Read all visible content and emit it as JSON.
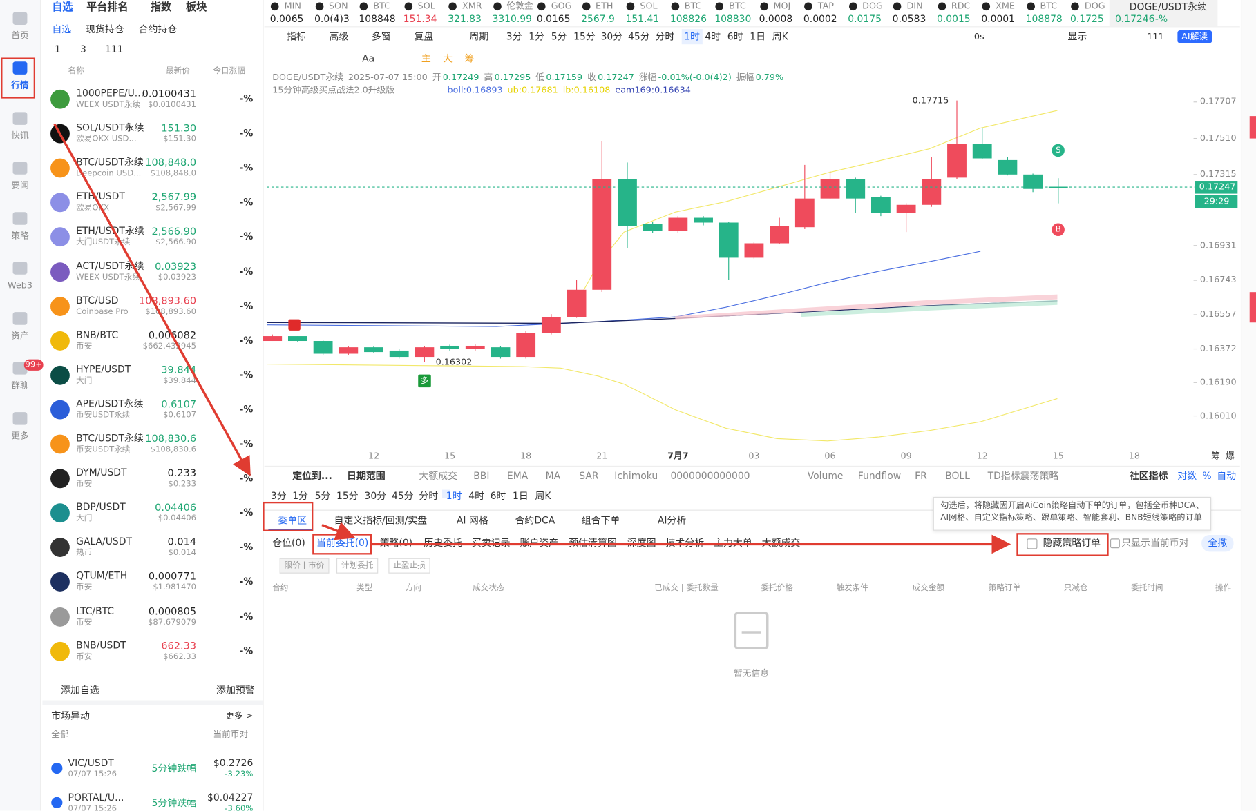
{
  "nav": {
    "items": [
      "首页",
      "行情",
      "快讯",
      "要闻",
      "策略",
      "Web3",
      "资产",
      "群聊",
      "更多"
    ],
    "badge": "99+"
  },
  "market": {
    "tabs": [
      "自选",
      "平台排名",
      "指数",
      "板块"
    ],
    "subtabs": [
      "自选",
      "现货持仓",
      "合约持仓"
    ],
    "groups": [
      "1",
      "3",
      "111"
    ],
    "columns": [
      "名称",
      "最新价",
      "今日涨幅"
    ],
    "rows": [
      {
        "symbol": "1000PEPE/U...",
        "exchange": "WEEX USDT永续",
        "price": "0.0100431",
        "usd": "$0.0100431",
        "change": "-%",
        "color": "#222"
      },
      {
        "symbol": "SOL/USDT永续",
        "exchange": "欧易OKX USD...",
        "price": "151.30",
        "usd": "$151.30",
        "change": "-%",
        "color": "#1ea672"
      },
      {
        "symbol": "BTC/USDT永续",
        "exchange": "Deepcoin USD...",
        "price": "108,848.0",
        "usd": "$108,848.0",
        "change": "-%",
        "color": "#1ea672"
      },
      {
        "symbol": "ETH/USDT",
        "exchange": "欧易OKX",
        "price": "2,567.99",
        "usd": "$2,567.99",
        "change": "-%",
        "color": "#1ea672"
      },
      {
        "symbol": "ETH/USDT永续",
        "exchange": "大门USDT永续",
        "price": "2,566.90",
        "usd": "$2,566.90",
        "change": "-%",
        "color": "#1ea672"
      },
      {
        "symbol": "ACT/USDT永续",
        "exchange": "WEEX USDT永续",
        "price": "0.03923",
        "usd": "$0.03923",
        "change": "-%",
        "color": "#1ea672"
      },
      {
        "symbol": "BTC/USD",
        "exchange": "Coinbase Pro",
        "price": "108,893.60",
        "usd": "$108,893.60",
        "change": "-%",
        "color": "#e8404f"
      },
      {
        "symbol": "BNB/BTC",
        "exchange": "币安",
        "price": "0.006082",
        "usd": "$662.432945",
        "change": "-%",
        "color": "#222"
      },
      {
        "symbol": "HYPE/USDT",
        "exchange": "大门",
        "price": "39.844",
        "usd": "$39.844",
        "change": "-%",
        "color": "#1ea672"
      },
      {
        "symbol": "APE/USDT永续",
        "exchange": "币安USDT永续",
        "price": "0.6107",
        "usd": "$0.6107",
        "change": "-%",
        "color": "#1ea672"
      },
      {
        "symbol": "BTC/USDT永续",
        "exchange": "币安USDT永续",
        "price": "108,830.6",
        "usd": "$108,830.6",
        "change": "-%",
        "color": "#1ea672"
      },
      {
        "symbol": "DYM/USDT",
        "exchange": "币安",
        "price": "0.233",
        "usd": "$0.233",
        "change": "-%",
        "color": "#222"
      },
      {
        "symbol": "BDP/USDT",
        "exchange": "大门",
        "price": "0.04406",
        "usd": "$0.04406",
        "change": "-%",
        "color": "#1ea672"
      },
      {
        "symbol": "GALA/USDT",
        "exchange": "热币",
        "price": "0.014",
        "usd": "$0.014",
        "change": "-%",
        "color": "#222"
      },
      {
        "symbol": "QTUM/ETH",
        "exchange": "币安",
        "price": "0.000771",
        "usd": "$1.981470",
        "change": "-%",
        "color": "#222"
      },
      {
        "symbol": "LTC/BTC",
        "exchange": "币安",
        "price": "0.000805",
        "usd": "$87.679079",
        "change": "-%",
        "color": "#222"
      },
      {
        "symbol": "BNB/USDT",
        "exchange": "币安",
        "price": "662.33",
        "usd": "$662.33",
        "change": "-%",
        "color": "#e8404f"
      }
    ],
    "add": "添加自选",
    "alert": "添加预警"
  },
  "movement": {
    "title": "市场异动",
    "more": "更多 >",
    "filter": "全部",
    "current": "当前币对",
    "items": [
      {
        "pair": "VIC/USDT",
        "time": "07/07 15:26",
        "type": "5分钟跌幅",
        "price": "$0.2726",
        "change": "-3.23%"
      },
      {
        "pair": "PORTAL/U...",
        "time": "07/07 15:26",
        "type": "5分钟跌幅",
        "price": "$0.04227",
        "change": "-3.60%"
      }
    ]
  },
  "tickers": [
    {
      "name": "MIN",
      "price": "0.0065",
      "color": "#222"
    },
    {
      "name": "SON",
      "price": "0.0(4)3",
      "color": "#222"
    },
    {
      "name": "BTC",
      "price": "108848",
      "color": "#222"
    },
    {
      "name": "SOL",
      "price": "151.34",
      "color": "#e8404f"
    },
    {
      "name": "XMR",
      "price": "321.83",
      "color": "#1ea672"
    },
    {
      "name": "伦敦金",
      "price": "3310.99",
      "color": "#1ea672"
    },
    {
      "name": "GOG",
      "price": "0.0165",
      "color": "#222"
    },
    {
      "name": "ETH",
      "price": "2567.9",
      "color": "#1ea672"
    },
    {
      "name": "SOL",
      "price": "151.41",
      "color": "#1ea672"
    },
    {
      "name": "BTC",
      "price": "108826",
      "color": "#1ea672"
    },
    {
      "name": "BTC",
      "price": "108830",
      "color": "#1ea672"
    },
    {
      "name": "MOJ",
      "price": "0.0008",
      "color": "#222"
    },
    {
      "name": "TAP",
      "price": "0.0002",
      "color": "#222"
    },
    {
      "name": "DOG",
      "price": "0.0175",
      "color": "#1ea672"
    },
    {
      "name": "DIN",
      "price": "0.0583",
      "color": "#222"
    },
    {
      "name": "RDC",
      "price": "0.0015",
      "color": "#1ea672"
    },
    {
      "name": "XME",
      "price": "0.0001",
      "color": "#222"
    },
    {
      "name": "BTC",
      "price": "108878",
      "color": "#1ea672"
    },
    {
      "name": "DOG",
      "price": "0.1725",
      "color": "#1ea672"
    }
  ],
  "active_ticker": {
    "name": "DOGE/USDT永续",
    "price": "0.17246",
    "change": "-%"
  },
  "toolbar": {
    "tools": [
      "指标",
      "高级",
      "多窗",
      "复盘"
    ],
    "period_label": "周期",
    "periods": [
      "3分",
      "1分",
      "5分",
      "15分",
      "30分",
      "45分",
      "分时",
      "1时",
      "4时",
      "6时",
      "1日",
      "周K"
    ],
    "active_period": 7,
    "timer": "0s",
    "display": "显示",
    "cloud": "111",
    "ai": "AI解读"
  },
  "drawing": [
    "Aa",
    "主",
    "大",
    "筹"
  ],
  "chart_data": {
    "type": "candlestick",
    "title": "DOGE/USDT永续",
    "time": "2025-07-07 15:00",
    "fields": [
      {
        "k": "开",
        "v": "0.17249"
      },
      {
        "k": "高",
        "v": "0.17295"
      },
      {
        "k": "低",
        "v": "0.17159"
      },
      {
        "k": "收",
        "v": "0.17247"
      },
      {
        "k": "涨幅",
        "v": "-0.01%(-0.0(4)2)"
      },
      {
        "k": "振幅",
        "v": "0.79%"
      }
    ],
    "strategy": "15分钟高级买点战法2.0升级版",
    "indicators": [
      {
        "text": "boll:0.16893",
        "color": "#4a6ee0"
      },
      {
        "text": "ub:0.17681",
        "color": "#e6d200"
      },
      {
        "text": "lb:0.16108",
        "color": "#e6d200"
      },
      {
        "text": "eam169:0.16634",
        "color": "#3040b0"
      }
    ],
    "categories": [
      null,
      null,
      null,
      null,
      "12",
      null,
      null,
      "15",
      null,
      null,
      "18",
      null,
      null,
      "21",
      null,
      null,
      "7月7",
      null,
      null,
      "03",
      null,
      null,
      "06",
      null,
      null,
      "09",
      null,
      null,
      "12",
      null,
      null,
      "15",
      null,
      null,
      "18"
    ],
    "open": [
      0.16415,
      0.16441,
      0.16415,
      0.16346,
      0.16381,
      0.16363,
      0.16329,
      0.16389,
      0.16372,
      0.16381,
      0.16329,
      0.16459,
      0.16545,
      0.16692,
      0.17289,
      0.17047,
      0.17012,
      0.17081,
      0.17055,
      0.16865,
      0.16943,
      0.1703,
      0.17185,
      0.17289,
      0.17194,
      0.17107,
      0.17151,
      0.17298,
      0.17479,
      0.17393,
      0.17315,
      0.17249,
      null,
      null,
      null
    ],
    "high": [
      0.1645,
      0.16441,
      0.1642,
      0.16389,
      0.16389,
      0.16372,
      0.16389,
      0.16395,
      0.164,
      0.16389,
      0.1647,
      0.1656,
      0.16744,
      0.17497,
      0.1738,
      0.1706,
      0.1709,
      0.1709,
      0.1706,
      0.1695,
      0.17081,
      0.17367,
      0.17332,
      0.17298,
      0.172,
      0.1716,
      0.1741,
      0.17715,
      0.17566,
      0.1741,
      0.1732,
      0.17295,
      null,
      null,
      null
    ],
    "low": [
      0.16415,
      0.1641,
      0.1634,
      0.1634,
      0.1635,
      0.1632,
      0.16302,
      0.16363,
      0.1636,
      0.1632,
      0.1632,
      0.1645,
      0.1654,
      0.1668,
      0.16917,
      0.17,
      0.17,
      0.1704,
      0.16744,
      0.1686,
      0.1694,
      0.1702,
      0.1718,
      0.17107,
      0.1709,
      0.17004,
      0.1714,
      0.1729,
      0.174,
      0.1731,
      0.1722,
      0.17159,
      null,
      null,
      null
    ],
    "close": [
      0.16441,
      0.16415,
      0.16346,
      0.16381,
      0.16355,
      0.16329,
      0.16381,
      0.16372,
      0.16389,
      0.16329,
      0.16459,
      0.16545,
      0.16692,
      0.17289,
      0.17038,
      0.17012,
      0.17081,
      0.17055,
      0.16865,
      0.16943,
      0.17038,
      0.17185,
      0.17289,
      0.17185,
      0.17107,
      0.17151,
      0.17289,
      0.17479,
      0.17402,
      0.17315,
      0.17237,
      0.17247,
      null,
      null,
      null
    ],
    "up_color": "#ef4b5c",
    "down_color": "#26b489",
    "ylim": [
      0.15814,
      0.17869
    ],
    "yticks": [
      0.17707,
      {
        "value": 0.1751,
        "label": "0.17510"
      },
      0.17315,
      0.16931,
      0.16743,
      0.16557,
      0.16372,
      {
        "value": 0.1619,
        "label": "0.16190"
      },
      {
        "value": 0.1601,
        "label": "0.16010"
      }
    ],
    "grid": false,
    "last_price": 0.17247,
    "countdown": "29:29",
    "high_label": "0.17715",
    "low_label": "0.16302",
    "sell": "S",
    "buy": "B",
    "long": "多",
    "side": [
      "筹",
      "爆"
    ]
  },
  "indicator_bar": {
    "locate": "定位到...",
    "range": "日期范围",
    "items": [
      "大额成交",
      "BBI",
      "EMA",
      "MA",
      "SAR",
      "Ichimoku",
      "0000000000000"
    ],
    "sub": [
      "Volume",
      "Fundflow",
      "FR",
      "BOLL",
      "TD指标震荡策略"
    ],
    "community": "社区指标",
    "scale": [
      "对数",
      "%",
      "自动"
    ]
  },
  "periods2": [
    "3分",
    "1分",
    "5分",
    "15分",
    "30分",
    "45分",
    "分时",
    "1时",
    "4时",
    "6时",
    "1日",
    "周K"
  ],
  "orders": {
    "tabs": [
      "委单区",
      "自定义指标/回测/实盘",
      "AI 网格",
      "合约DCA",
      "组合下单",
      "AI分析"
    ],
    "subtabs": [
      "仓位(0)",
      "当前委托(0)",
      "策略(0)",
      "历史委托",
      "买卖记录",
      "账户资产",
      "预估清算图",
      "深度图",
      "技术分析",
      "主力大单",
      "大额成交"
    ],
    "hide": "隐藏策略订单",
    "only": "只显示当前币对",
    "cancel": "全撤",
    "filters": [
      "限价 | 市价",
      "计划委托",
      "止盈止损"
    ],
    "columns": [
      "合约",
      "类型",
      "方向",
      "成交状态",
      "已成交 | 委托数量",
      "委托价格",
      "触发条件",
      "成交金额",
      "策略订单",
      "只减仓",
      "委托时间",
      "操作"
    ],
    "empty": "暂无信息",
    "tooltip": "勾选后，将隐藏因开启AiCoin策略自动下单的订单，包括全币种DCA、AI网格、自定义指标策略、跟单策略、智能套利、BNB短线策略的订单"
  }
}
